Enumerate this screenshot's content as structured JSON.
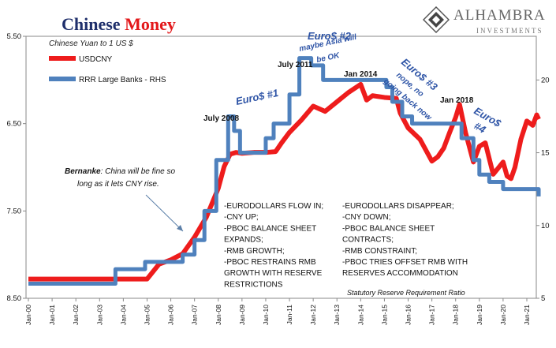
{
  "header": {
    "title_part1": "Chinese",
    "title_part2": "Money",
    "subtitle": "Chinese Yuan to 1 US $",
    "brand_name": "ALHAMBRA",
    "brand_sub": "INVESTMENTS",
    "logo_icon": "alhambra-diamond-logo-icon"
  },
  "colors": {
    "usdcny": "#ee1c1c",
    "rrr": "#4f81bd",
    "euro_labels": "#2e54a6",
    "title_blue": "#1f2f6b",
    "title_red": "#e3191b"
  },
  "chart_data": {
    "type": "line",
    "series": [
      {
        "name": "USDCNY",
        "axis": "left",
        "points": [
          [
            "Jan-00",
            8.28
          ],
          [
            "Jan-01",
            8.28
          ],
          [
            "Jan-02",
            8.28
          ],
          [
            "Jan-03",
            8.28
          ],
          [
            "Jan-04",
            8.28
          ],
          [
            "Jan-05",
            8.28
          ],
          [
            "Jul-05",
            8.11
          ],
          [
            "Jan-06",
            8.06
          ],
          [
            "Jul-06",
            7.99
          ],
          [
            "Jan-07",
            7.8
          ],
          [
            "Jul-07",
            7.57
          ],
          [
            "Jan-08",
            7.24
          ],
          [
            "Apr-08",
            6.99
          ],
          [
            "Jul-08",
            6.85
          ],
          [
            "Oct-08",
            6.83
          ],
          [
            "Jan-09",
            6.84
          ],
          [
            "Jul-09",
            6.83
          ],
          [
            "Jan-10",
            6.83
          ],
          [
            "Jun-10",
            6.82
          ],
          [
            "Sep-10",
            6.72
          ],
          [
            "Jan-11",
            6.6
          ],
          [
            "Jul-11",
            6.46
          ],
          [
            "Jan-12",
            6.3
          ],
          [
            "Jul-12",
            6.36
          ],
          [
            "Jan-13",
            6.25
          ],
          [
            "Jul-13",
            6.14
          ],
          [
            "Jan-14",
            6.05
          ],
          [
            "Apr-14",
            6.23
          ],
          [
            "Jul-14",
            6.18
          ],
          [
            "Jan-15",
            6.2
          ],
          [
            "Jul-15",
            6.21
          ],
          [
            "Sep-15",
            6.38
          ],
          [
            "Jan-16",
            6.55
          ],
          [
            "Jul-16",
            6.68
          ],
          [
            "Jan-17",
            6.93
          ],
          [
            "Apr-17",
            6.88
          ],
          [
            "Jul-17",
            6.78
          ],
          [
            "Oct-17",
            6.6
          ],
          [
            "Jan-18",
            6.43
          ],
          [
            "Mar-18",
            6.28
          ],
          [
            "Jun-18",
            6.6
          ],
          [
            "Oct-18",
            6.94
          ],
          [
            "Jan-19",
            6.76
          ],
          [
            "Apr-19",
            6.72
          ],
          [
            "Aug-19",
            7.08
          ],
          [
            "Jan-20",
            6.94
          ],
          [
            "Mar-20",
            7.1
          ],
          [
            "May-20",
            7.13
          ],
          [
            "Jul-20",
            7.0
          ],
          [
            "Oct-20",
            6.68
          ],
          [
            "Jan-21",
            6.47
          ],
          [
            "Apr-21",
            6.52
          ],
          [
            "Jun-21",
            6.4
          ],
          [
            "Jul-21",
            6.45
          ]
        ]
      },
      {
        "name": "RRR Large Banks - RHS",
        "axis": "right",
        "points": [
          [
            "Jan-00",
            6
          ],
          [
            "Mar-03",
            6
          ],
          [
            "Sep-03",
            7
          ],
          [
            "Dec-04",
            7.5
          ],
          [
            "Jul-06",
            8
          ],
          [
            "Jan-07",
            9
          ],
          [
            "Jun-07",
            11
          ],
          [
            "Dec-07",
            14.5
          ],
          [
            "Jun-08",
            17.5
          ],
          [
            "Sep-08",
            16.5
          ],
          [
            "Dec-08",
            15
          ],
          [
            "Jan-10",
            16
          ],
          [
            "May-10",
            17
          ],
          [
            "Jan-11",
            19
          ],
          [
            "Jun-11",
            21.5
          ],
          [
            "Dec-11",
            21
          ],
          [
            "Jun-12",
            20
          ],
          [
            "Feb-15",
            19.5
          ],
          [
            "May-15",
            18.5
          ],
          [
            "Oct-15",
            17.5
          ],
          [
            "Mar-16",
            17
          ],
          [
            "Apr-18",
            16
          ],
          [
            "Oct-18",
            14.5
          ],
          [
            "Jan-19",
            13.5
          ],
          [
            "Jun-19",
            13
          ],
          [
            "Jan-20",
            12.5
          ],
          [
            "Jul-21",
            12
          ]
        ]
      }
    ],
    "y_left": {
      "ticks": [
        "5.50",
        "6.50",
        "7.50",
        "8.50"
      ],
      "min": 5.5,
      "max": 8.5,
      "inverted": true
    },
    "y_right": {
      "ticks": [
        "5",
        "10",
        "15",
        "20"
      ],
      "min": 5,
      "max": 23
    },
    "x_ticks": [
      "Jan-00",
      "Jan-01",
      "Jan-02",
      "Jan-03",
      "Jan-04",
      "Jan-05",
      "Jan-06",
      "Jan-07",
      "Jan-08",
      "Jan-09",
      "Jan-10",
      "Jan-11",
      "Jan-12",
      "Jan-13",
      "Jan-14",
      "Jan-15",
      "Jan-16",
      "Jan-17",
      "Jan-18",
      "Jan-19",
      "Jan-20",
      "Jan-21"
    ],
    "legend": {
      "position": "top-left"
    },
    "grid": false,
    "annotations": {
      "euro1": "Euro$ #1",
      "euro2_title": "Euro$ #2",
      "euro2_note_line1": "maybe Asia will",
      "euro2_note_line2": "be OK",
      "euro3_line1": "Euro$ #3",
      "euro3_line2": "nope, no",
      "euro3_line3": "going back now",
      "euro4_line1": "Euro$",
      "euro4_line2": "#4",
      "july2008": "July 2008",
      "july2011": "July 2011",
      "jan2014": "Jan 2014",
      "jan2018": "Jan 2018",
      "bernanke_name": "Bernanke",
      "bernanke_line1": ": China will be fine so",
      "bernanke_line2": "long as it lets CNY rise.",
      "left_block": [
        "-EURODOLLARS FLOW IN;",
        "-CNY UP;",
        "-PBOC BALANCE SHEET",
        "EXPANDS;",
        "-RMB GROWTH;",
        "-PBOC RESTRAINS RMB",
        "GROWTH WITH RESERVE",
        "RESTRICTIONS"
      ],
      "right_block": [
        "-EURODOLLARS DISAPPEAR;",
        "-CNY DOWN;",
        "-PBOC BALANCE SHEET",
        "CONTRACTS;",
        "-RMB CONSTRAINT;",
        "-PBOC TRIES OFFSET RMB WITH",
        "RESERVES ACCOMMODATION"
      ],
      "rrr_axis_caption": "Statutory Reserve Requirement Ratio"
    }
  }
}
